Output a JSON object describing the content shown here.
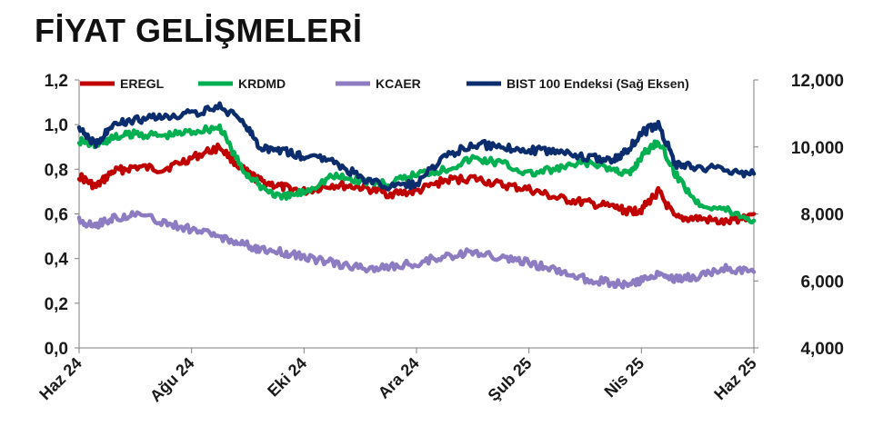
{
  "header": {
    "title": "FİYAT GELİŞMELERİ"
  },
  "chart_data": {
    "type": "line",
    "title": "FİYAT GELİŞMELERİ",
    "xlabel": "",
    "ylabel": "",
    "x_ticks": [
      "Haz 24",
      "Ağu 24",
      "Eki 24",
      "Ara 24",
      "Şub 25",
      "Nis 25",
      "Haz 25"
    ],
    "x_range": [
      0,
      12
    ],
    "y_left": {
      "ticks": [
        "0,0",
        "0,2",
        "0,4",
        "0,6",
        "0,8",
        "1,0",
        "1,2"
      ],
      "range": [
        0,
        1.2
      ]
    },
    "y_right": {
      "ticks": [
        "4,000",
        "6,000",
        "8,000",
        "10,000",
        "12,000"
      ],
      "range": [
        4000,
        12000
      ]
    },
    "grid": false,
    "legend": {
      "placement": "top"
    },
    "series": [
      {
        "name": "EREGL",
        "color": "#c00000",
        "axis": "left",
        "x": [
          0,
          0.3,
          0.6,
          1,
          1.5,
          2,
          2.5,
          2.9,
          3.2,
          3.6,
          4,
          4.5,
          5,
          5.5,
          6,
          6.5,
          7,
          7.5,
          8,
          8.5,
          9,
          9.5,
          9.8,
          10,
          10.3,
          10.6,
          11,
          11.5,
          12
        ],
        "values": [
          0.77,
          0.72,
          0.79,
          0.81,
          0.8,
          0.85,
          0.9,
          0.8,
          0.75,
          0.72,
          0.7,
          0.73,
          0.72,
          0.69,
          0.7,
          0.75,
          0.76,
          0.73,
          0.71,
          0.67,
          0.65,
          0.63,
          0.61,
          0.62,
          0.7,
          0.58,
          0.58,
          0.56,
          0.6
        ]
      },
      {
        "name": "KRDMD",
        "color": "#00b050",
        "axis": "left",
        "x": [
          0,
          0.3,
          0.6,
          1,
          1.5,
          2,
          2.5,
          2.9,
          3.2,
          3.6,
          4,
          4.5,
          5,
          5.5,
          6,
          6.5,
          7,
          7.5,
          8,
          8.5,
          9,
          9.5,
          9.8,
          10,
          10.3,
          10.6,
          11,
          11.5,
          12
        ],
        "values": [
          0.93,
          0.91,
          0.94,
          0.96,
          0.95,
          0.97,
          0.99,
          0.8,
          0.73,
          0.67,
          0.7,
          0.77,
          0.75,
          0.73,
          0.78,
          0.8,
          0.85,
          0.83,
          0.78,
          0.8,
          0.83,
          0.8,
          0.78,
          0.86,
          0.93,
          0.78,
          0.65,
          0.62,
          0.57
        ]
      },
      {
        "name": "KCAER",
        "color": "#8e7cc3",
        "axis": "left",
        "x": [
          0,
          0.3,
          0.6,
          1,
          1.5,
          2,
          2.5,
          2.9,
          3.2,
          3.6,
          4,
          4.5,
          5,
          5.5,
          6,
          6.5,
          7,
          7.5,
          8,
          8.5,
          9,
          9.5,
          9.8,
          10,
          10.3,
          10.6,
          11,
          11.5,
          12
        ],
        "values": [
          0.57,
          0.55,
          0.58,
          0.6,
          0.56,
          0.53,
          0.5,
          0.47,
          0.44,
          0.43,
          0.41,
          0.38,
          0.36,
          0.36,
          0.38,
          0.41,
          0.43,
          0.4,
          0.38,
          0.35,
          0.31,
          0.29,
          0.28,
          0.3,
          0.34,
          0.31,
          0.32,
          0.36,
          0.34
        ]
      },
      {
        "name": "BIST 100 Endeksi (Sağ Eksen)",
        "color": "#0b2d6e",
        "axis": "right",
        "x": [
          0,
          0.3,
          0.6,
          1,
          1.5,
          2,
          2.5,
          2.9,
          3.2,
          3.6,
          4,
          4.5,
          5,
          5.5,
          6,
          6.5,
          7,
          7.5,
          8,
          8.5,
          9,
          9.5,
          9.8,
          10,
          10.3,
          10.6,
          11,
          11.5,
          12
        ],
        "values": [
          10500,
          10100,
          10700,
          10800,
          10900,
          11000,
          11200,
          10800,
          10000,
          9900,
          9700,
          9600,
          9100,
          8800,
          8900,
          9700,
          10100,
          10000,
          9900,
          9900,
          9700,
          9600,
          10000,
          10400,
          10700,
          9500,
          9400,
          9300,
          9200
        ]
      }
    ]
  }
}
